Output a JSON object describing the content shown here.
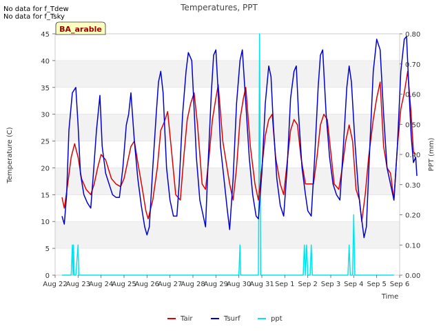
{
  "notes": [
    "No data for f_Tdew",
    "No data for f_Tsky"
  ],
  "site_label": "BA_arable",
  "chart_data": {
    "type": "line",
    "title": "Temperatures, PPT",
    "xlabel": "Time",
    "ylabel_left": "Temperature (C)",
    "ylabel_right": "PPT (mm)",
    "x_ticks": [
      "Aug 22",
      "Aug 23",
      "Aug 24",
      "Aug 25",
      "Aug 26",
      "Aug 27",
      "Aug 28",
      "Aug 29",
      "Aug 30",
      "Aug 31",
      "Sep 1",
      "Sep 2",
      "Sep 3",
      "Sep 4",
      "Sep 5",
      "Sep 6"
    ],
    "x_range_days": [
      0,
      15
    ],
    "ylim_left": [
      0,
      45
    ],
    "ylim_right": [
      0.0,
      0.8
    ],
    "left_ticks": [
      0,
      5,
      10,
      15,
      20,
      25,
      30,
      35,
      40,
      45
    ],
    "right_ticks": [
      "0.00",
      "0.10",
      "0.20",
      "0.30",
      "0.40",
      "0.50",
      "0.60",
      "0.70",
      "0.80"
    ],
    "legend_position": "bottom-center",
    "grid": "horizontal bands",
    "series": [
      {
        "name": "Tair",
        "color": "#dd0000",
        "axis": "left",
        "points": [
          [
            0.3,
            14.5
          ],
          [
            0.4,
            12.5
          ],
          [
            0.55,
            17
          ],
          [
            0.7,
            22
          ],
          [
            0.85,
            24.5
          ],
          [
            1.0,
            22
          ],
          [
            1.15,
            18
          ],
          [
            1.35,
            16
          ],
          [
            1.55,
            15
          ],
          [
            1.7,
            17
          ],
          [
            1.85,
            20
          ],
          [
            2.0,
            22.5
          ],
          [
            2.2,
            21.5
          ],
          [
            2.45,
            18
          ],
          [
            2.65,
            17
          ],
          [
            2.85,
            16.5
          ],
          [
            3.0,
            18
          ],
          [
            3.15,
            21
          ],
          [
            3.3,
            24
          ],
          [
            3.45,
            25
          ],
          [
            3.6,
            21
          ],
          [
            3.8,
            16
          ],
          [
            3.95,
            12
          ],
          [
            4.05,
            10.5
          ],
          [
            4.25,
            14
          ],
          [
            4.45,
            20
          ],
          [
            4.6,
            27
          ],
          [
            4.75,
            28.5
          ],
          [
            4.9,
            30.5
          ],
          [
            5.05,
            24
          ],
          [
            5.25,
            15
          ],
          [
            5.45,
            14
          ],
          [
            5.6,
            22
          ],
          [
            5.75,
            29
          ],
          [
            5.9,
            32
          ],
          [
            6.05,
            34
          ],
          [
            6.2,
            28
          ],
          [
            6.4,
            17
          ],
          [
            6.55,
            16
          ],
          [
            6.7,
            22
          ],
          [
            6.85,
            29
          ],
          [
            7.0,
            33
          ],
          [
            7.1,
            35.5
          ],
          [
            7.3,
            25
          ],
          [
            7.45,
            21
          ],
          [
            7.6,
            17
          ],
          [
            7.75,
            14
          ],
          [
            7.9,
            20
          ],
          [
            8.05,
            29
          ],
          [
            8.2,
            33
          ],
          [
            8.3,
            35
          ],
          [
            8.5,
            24
          ],
          [
            8.7,
            17
          ],
          [
            8.85,
            14
          ],
          [
            9.0,
            20
          ],
          [
            9.15,
            26
          ],
          [
            9.3,
            29
          ],
          [
            9.45,
            30
          ],
          [
            9.6,
            22
          ],
          [
            9.8,
            17
          ],
          [
            9.95,
            15
          ],
          [
            10.1,
            21
          ],
          [
            10.25,
            27
          ],
          [
            10.4,
            29
          ],
          [
            10.55,
            28
          ],
          [
            10.7,
            22
          ],
          [
            10.9,
            17
          ],
          [
            11.05,
            17
          ],
          [
            11.25,
            17
          ],
          [
            11.4,
            22
          ],
          [
            11.55,
            28
          ],
          [
            11.7,
            30
          ],
          [
            11.85,
            29
          ],
          [
            12.0,
            23
          ],
          [
            12.15,
            17
          ],
          [
            12.35,
            16
          ],
          [
            12.5,
            20
          ],
          [
            12.65,
            25
          ],
          [
            12.8,
            28
          ],
          [
            12.95,
            25
          ],
          [
            13.1,
            16
          ],
          [
            13.25,
            14
          ],
          [
            13.35,
            10
          ],
          [
            13.5,
            15
          ],
          [
            13.65,
            22
          ],
          [
            13.85,
            29
          ],
          [
            14.0,
            33
          ],
          [
            14.15,
            36
          ],
          [
            14.3,
            24
          ],
          [
            14.45,
            20
          ],
          [
            14.6,
            19
          ],
          [
            14.75,
            14
          ],
          [
            14.9,
            24
          ],
          [
            15.05,
            31
          ],
          [
            15.2,
            34
          ],
          [
            15.35,
            38
          ],
          [
            15.5,
            30
          ],
          [
            15.6,
            23
          ],
          [
            15.7,
            22.5
          ]
        ]
      },
      {
        "name": "Tsurf",
        "color": "#0000cc",
        "axis": "left",
        "points": [
          [
            0.3,
            11
          ],
          [
            0.4,
            9.5
          ],
          [
            0.5,
            15
          ],
          [
            0.6,
            27
          ],
          [
            0.75,
            34
          ],
          [
            0.9,
            35
          ],
          [
            1.0,
            28
          ],
          [
            1.1,
            19
          ],
          [
            1.25,
            15
          ],
          [
            1.4,
            13.5
          ],
          [
            1.55,
            12.5
          ],
          [
            1.65,
            18
          ],
          [
            1.8,
            27
          ],
          [
            1.95,
            33.5
          ],
          [
            2.05,
            24
          ],
          [
            2.2,
            19
          ],
          [
            2.35,
            17
          ],
          [
            2.5,
            15
          ],
          [
            2.65,
            14.5
          ],
          [
            2.8,
            14.5
          ],
          [
            2.95,
            20
          ],
          [
            3.1,
            28
          ],
          [
            3.2,
            30
          ],
          [
            3.3,
            34
          ],
          [
            3.45,
            25
          ],
          [
            3.6,
            18
          ],
          [
            3.75,
            13
          ],
          [
            3.9,
            9
          ],
          [
            4.0,
            7.5
          ],
          [
            4.1,
            9
          ],
          [
            4.25,
            20
          ],
          [
            4.4,
            30
          ],
          [
            4.5,
            36
          ],
          [
            4.6,
            38
          ],
          [
            4.7,
            34
          ],
          [
            4.85,
            20
          ],
          [
            5.0,
            14
          ],
          [
            5.15,
            11
          ],
          [
            5.3,
            11
          ],
          [
            5.4,
            17
          ],
          [
            5.55,
            30
          ],
          [
            5.7,
            38
          ],
          [
            5.8,
            41.5
          ],
          [
            5.95,
            40
          ],
          [
            6.05,
            31
          ],
          [
            6.15,
            22
          ],
          [
            6.3,
            14
          ],
          [
            6.45,
            11
          ],
          [
            6.55,
            9
          ],
          [
            6.65,
            20
          ],
          [
            6.8,
            34
          ],
          [
            6.9,
            41
          ],
          [
            7.0,
            42
          ],
          [
            7.1,
            34
          ],
          [
            7.2,
            24
          ],
          [
            7.35,
            18
          ],
          [
            7.5,
            12
          ],
          [
            7.6,
            8.5
          ],
          [
            7.75,
            18
          ],
          [
            7.9,
            32
          ],
          [
            8.05,
            40
          ],
          [
            8.15,
            42
          ],
          [
            8.3,
            32
          ],
          [
            8.45,
            22
          ],
          [
            8.6,
            15
          ],
          [
            8.75,
            11
          ],
          [
            8.85,
            10.5
          ],
          [
            9.0,
            19
          ],
          [
            9.15,
            32
          ],
          [
            9.3,
            39
          ],
          [
            9.4,
            37
          ],
          [
            9.5,
            28
          ],
          [
            9.65,
            18
          ],
          [
            9.8,
            13
          ],
          [
            9.95,
            11
          ],
          [
            10.1,
            20
          ],
          [
            10.25,
            33
          ],
          [
            10.4,
            38
          ],
          [
            10.5,
            39
          ],
          [
            10.6,
            30
          ],
          [
            10.75,
            20
          ],
          [
            10.9,
            15
          ],
          [
            11.0,
            12
          ],
          [
            11.15,
            11
          ],
          [
            11.3,
            22
          ],
          [
            11.45,
            35
          ],
          [
            11.55,
            41
          ],
          [
            11.65,
            42
          ],
          [
            11.8,
            30
          ],
          [
            11.95,
            22
          ],
          [
            12.1,
            17
          ],
          [
            12.25,
            15
          ],
          [
            12.4,
            14
          ],
          [
            12.55,
            24
          ],
          [
            12.7,
            35
          ],
          [
            12.8,
            39
          ],
          [
            12.9,
            36
          ],
          [
            13.05,
            25
          ],
          [
            13.2,
            16
          ],
          [
            13.3,
            12
          ],
          [
            13.45,
            7
          ],
          [
            13.55,
            9
          ],
          [
            13.7,
            24
          ],
          [
            13.85,
            38
          ],
          [
            14.0,
            44
          ],
          [
            14.15,
            42
          ],
          [
            14.3,
            30
          ],
          [
            14.45,
            20
          ],
          [
            14.6,
            17
          ],
          [
            14.75,
            14
          ],
          [
            14.9,
            24
          ],
          [
            15.05,
            38
          ],
          [
            15.2,
            44
          ],
          [
            15.3,
            44.5
          ],
          [
            15.4,
            35
          ],
          [
            15.5,
            26
          ],
          [
            15.6,
            21
          ],
          [
            15.7,
            22
          ],
          [
            15.75,
            18.5
          ]
        ]
      },
      {
        "name": "ppt",
        "color": "#00e5ee",
        "axis": "right",
        "points": [
          [
            0.3,
            0
          ],
          [
            0.7,
            0
          ],
          [
            0.75,
            0.1
          ],
          [
            0.78,
            0
          ],
          [
            0.8,
            0.1
          ],
          [
            0.83,
            0
          ],
          [
            0.9,
            0
          ],
          [
            1.0,
            0.1
          ],
          [
            1.03,
            0
          ],
          [
            8.0,
            0
          ],
          [
            8.05,
            0.1
          ],
          [
            8.08,
            0
          ],
          [
            8.85,
            0
          ],
          [
            8.9,
            0.8
          ],
          [
            8.95,
            0
          ],
          [
            10.8,
            0
          ],
          [
            10.85,
            0.1
          ],
          [
            10.9,
            0
          ],
          [
            10.95,
            0.1
          ],
          [
            11.0,
            0
          ],
          [
            11.1,
            0
          ],
          [
            11.15,
            0.1
          ],
          [
            11.2,
            0
          ],
          [
            12.75,
            0
          ],
          [
            12.8,
            0.1
          ],
          [
            12.85,
            0
          ],
          [
            12.95,
            0
          ],
          [
            13.0,
            0.2
          ],
          [
            13.05,
            0
          ],
          [
            14.75,
            0
          ]
        ]
      }
    ]
  }
}
